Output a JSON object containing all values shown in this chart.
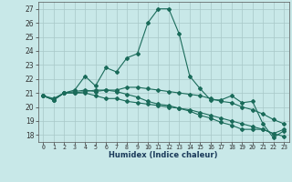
{
  "xlabel": "Humidex (Indice chaleur)",
  "x_ticks": [
    0,
    1,
    2,
    3,
    4,
    5,
    6,
    7,
    8,
    9,
    10,
    11,
    12,
    13,
    14,
    15,
    16,
    17,
    18,
    19,
    20,
    21,
    22,
    23
  ],
  "ylim": [
    17.5,
    27.5
  ],
  "yticks": [
    18,
    19,
    20,
    21,
    22,
    23,
    24,
    25,
    26,
    27
  ],
  "background_color": "#c8e8e8",
  "line_color": "#1a6b5a",
  "grid_color": "#a8c8c8",
  "series": [
    [
      20.8,
      20.5,
      21.0,
      21.2,
      22.2,
      21.5,
      22.8,
      22.5,
      23.5,
      23.8,
      26.0,
      27.0,
      27.0,
      25.2,
      22.2,
      21.3,
      20.5,
      20.5,
      20.8,
      20.3,
      20.4,
      18.8,
      17.8,
      18.3
    ],
    [
      20.8,
      20.6,
      21.0,
      21.1,
      21.2,
      21.1,
      21.2,
      21.2,
      21.4,
      21.4,
      21.3,
      21.2,
      21.1,
      21.0,
      20.9,
      20.8,
      20.6,
      20.4,
      20.3,
      20.0,
      19.8,
      19.5,
      19.1,
      18.8
    ],
    [
      20.8,
      20.5,
      21.0,
      21.0,
      21.0,
      20.8,
      20.6,
      20.6,
      20.4,
      20.3,
      20.2,
      20.1,
      20.0,
      19.9,
      19.8,
      19.6,
      19.4,
      19.2,
      19.0,
      18.8,
      18.6,
      18.4,
      18.1,
      17.9
    ],
    [
      20.8,
      20.5,
      21.0,
      21.0,
      21.1,
      21.2,
      21.2,
      21.1,
      20.9,
      20.7,
      20.4,
      20.2,
      20.1,
      19.9,
      19.7,
      19.4,
      19.2,
      18.9,
      18.7,
      18.4,
      18.4,
      18.4,
      18.1,
      18.4
    ]
  ]
}
